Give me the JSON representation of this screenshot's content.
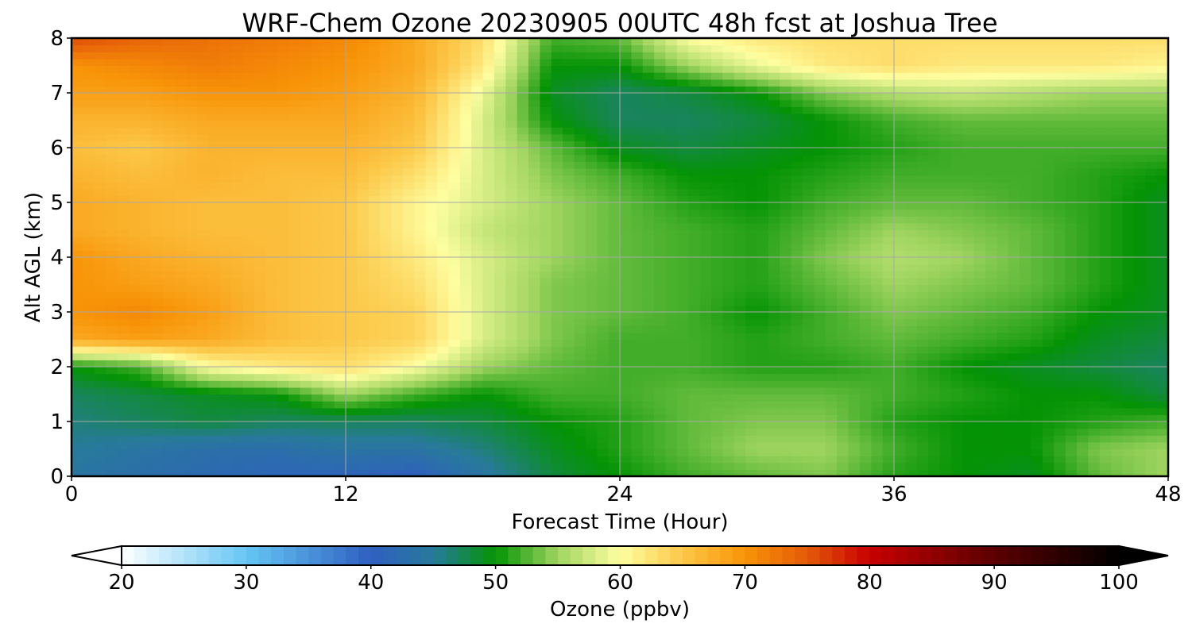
{
  "chart_data": {
    "type": "heatmap",
    "title": "WRF-Chem Ozone  20230905 00UTC 48h fcst at Joshua Tree",
    "xlabel": "Forecast Time (Hour)",
    "ylabel": "Alt AGL (km)",
    "xlim": [
      0,
      48
    ],
    "ylim": [
      0,
      8
    ],
    "x_ticks": [
      0,
      12,
      24,
      36,
      48
    ],
    "x_tick_labels": [
      "0",
      "12",
      "24",
      "36",
      "48"
    ],
    "y_ticks": [
      0,
      1,
      2,
      3,
      4,
      5,
      6,
      7,
      8
    ],
    "y_tick_labels": [
      "0",
      "1",
      "2",
      "3",
      "4",
      "5",
      "6",
      "7",
      "8"
    ],
    "grid": true,
    "x": [
      0,
      3,
      6,
      9,
      12,
      15,
      18,
      21,
      24,
      27,
      30,
      33,
      36,
      39,
      42,
      45,
      48
    ],
    "y": [
      0,
      0.5,
      1,
      1.5,
      2,
      2.5,
      3,
      3.5,
      4,
      4.5,
      5,
      5.5,
      6,
      6.5,
      7,
      7.5,
      8
    ],
    "z_units": "ppbv",
    "z": [
      [
        44,
        43,
        42,
        41,
        41,
        40,
        44,
        48,
        50,
        52,
        53,
        54,
        51,
        50,
        49,
        53,
        55
      ],
      [
        45,
        44,
        43,
        43,
        44,
        44,
        46,
        49,
        51,
        53,
        55,
        55,
        52,
        50,
        50,
        54,
        55
      ],
      [
        46,
        47,
        48,
        47,
        47,
        47,
        48,
        50,
        51,
        53,
        54,
        54,
        51,
        50,
        50,
        51,
        52
      ],
      [
        47,
        48,
        49,
        50,
        55,
        52,
        50,
        52,
        52,
        53,
        53,
        53,
        52,
        51,
        50,
        50,
        48
      ],
      [
        50,
        52,
        60,
        62,
        63,
        60,
        55,
        53,
        52,
        52,
        51,
        51,
        52,
        50,
        49,
        48,
        47
      ],
      [
        68,
        69,
        68,
        66,
        65,
        64,
        58,
        54,
        52,
        52,
        51,
        52,
        53,
        52,
        51,
        49,
        48
      ],
      [
        70,
        71,
        69,
        66,
        65,
        64,
        58,
        54,
        53,
        52,
        50,
        52,
        54,
        53,
        52,
        50,
        49
      ],
      [
        70,
        69,
        68,
        66,
        65,
        63,
        58,
        54,
        53,
        52,
        51,
        53,
        55,
        54,
        53,
        51,
        49
      ],
      [
        70,
        68,
        67,
        66,
        65,
        62,
        58,
        55,
        53,
        52,
        51,
        54,
        56,
        55,
        53,
        51,
        49
      ],
      [
        68,
        67,
        66,
        66,
        65,
        61,
        57,
        55,
        53,
        52,
        51,
        53,
        55,
        54,
        53,
        51,
        49
      ],
      [
        68,
        67,
        66,
        66,
        65,
        61,
        58,
        55,
        53,
        51,
        50,
        52,
        53,
        53,
        52,
        51,
        49
      ],
      [
        67,
        66,
        67,
        66,
        66,
        63,
        58,
        54,
        52,
        50,
        50,
        51,
        52,
        52,
        52,
        51,
        50
      ],
      [
        66,
        65,
        67,
        67,
        67,
        65,
        58,
        53,
        49,
        48,
        49,
        50,
        51,
        52,
        52,
        52,
        52
      ],
      [
        67,
        67,
        68,
        68,
        68,
        66,
        58,
        50,
        47,
        47,
        48,
        50,
        52,
        53,
        53,
        53,
        53
      ],
      [
        69,
        69,
        70,
        70,
        69,
        67,
        59,
        49,
        47,
        48,
        50,
        54,
        56,
        57,
        56,
        55,
        55
      ],
      [
        70,
        71,
        72,
        71,
        70,
        68,
        62,
        50,
        50,
        55,
        59,
        62,
        63,
        62,
        62,
        62,
        61
      ],
      [
        76,
        74,
        73,
        72,
        71,
        68,
        63,
        52,
        53,
        60,
        62,
        63,
        63,
        63,
        63,
        63,
        63
      ]
    ],
    "colorbar": {
      "label": "Ozone  (ppbv)",
      "min": 20,
      "max": 100,
      "ticks": [
        20,
        30,
        40,
        50,
        60,
        70,
        80,
        90,
        100
      ],
      "tick_labels": [
        "20",
        "30",
        "40",
        "50",
        "60",
        "70",
        "80",
        "90",
        "100"
      ],
      "extend": "both",
      "stops": [
        {
          "value": 20,
          "color": "#ffffff"
        },
        {
          "value": 30,
          "color": "#66c6f4"
        },
        {
          "value": 40,
          "color": "#2f5fc0"
        },
        {
          "value": 45,
          "color": "#287a9a"
        },
        {
          "value": 50,
          "color": "#049304"
        },
        {
          "value": 55,
          "color": "#a0d560"
        },
        {
          "value": 60,
          "color": "#fefea0"
        },
        {
          "value": 65,
          "color": "#fcc848"
        },
        {
          "value": 70,
          "color": "#f89408"
        },
        {
          "value": 75,
          "color": "#e45a08"
        },
        {
          "value": 80,
          "color": "#c80000"
        },
        {
          "value": 90,
          "color": "#5a0000"
        },
        {
          "value": 100,
          "color": "#000000"
        }
      ]
    }
  }
}
